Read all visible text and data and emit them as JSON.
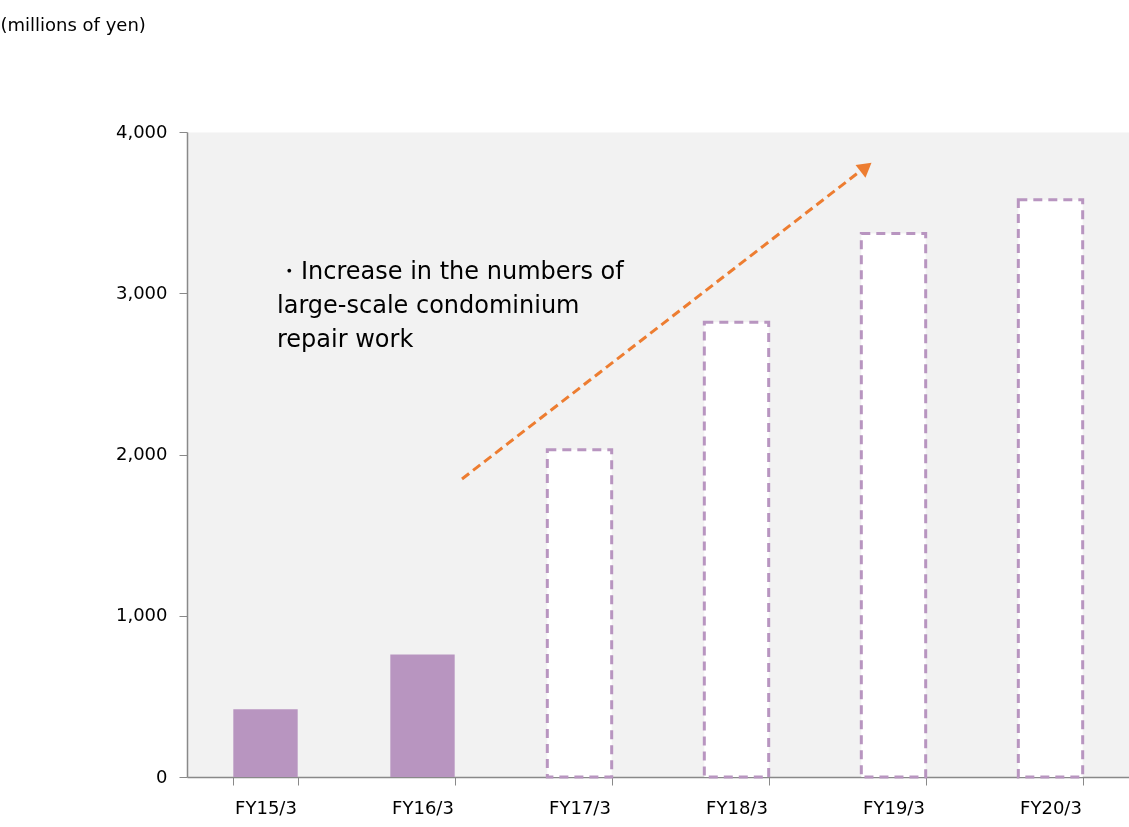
{
  "chart_data": {
    "type": "bar",
    "ylabel": "(millions of yen)",
    "categories": [
      "FY15/3",
      "FY16/3",
      "FY17/3",
      "FY18/3",
      "FY19/3",
      "FY20/3"
    ],
    "series": [
      {
        "color": "#b895c0",
        "line_style": "solid",
        "values": [
          420,
          760,
          null,
          null,
          null,
          null
        ]
      },
      {
        "color": "#b895c0",
        "line_style": "dashed",
        "values": [
          null,
          null,
          2030,
          2820,
          3370,
          3580
        ]
      }
    ],
    "ylim": [
      0,
      4000
    ],
    "yticks": [
      {
        "value": 0,
        "label": "0"
      },
      {
        "value": 1000,
        "label": "1,000"
      },
      {
        "value": 2000,
        "label": "2,000"
      },
      {
        "value": 3000,
        "label": "3,000"
      },
      {
        "value": 4000,
        "label": "4,000"
      }
    ],
    "grid": false,
    "annotations": [
      "・Increase in the numbers of\n  large-scale condominium\n  repair work"
    ]
  }
}
